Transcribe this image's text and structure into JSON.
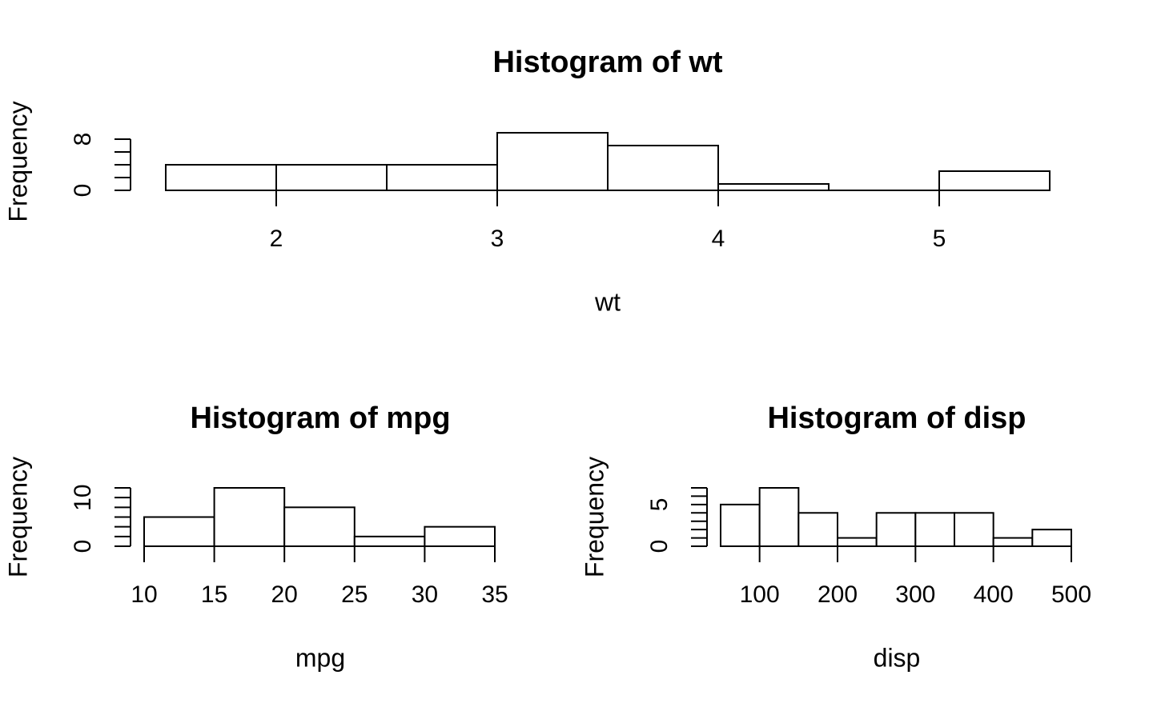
{
  "chart_data": [
    {
      "type": "histogram",
      "title": "Histogram of wt",
      "xlabel": "wt",
      "ylabel": "Frequency",
      "bins": [
        1.5,
        2,
        2.5,
        3,
        3.5,
        4,
        4.5,
        5,
        5.5
      ],
      "counts": [
        4,
        4,
        4,
        9,
        7,
        1,
        0,
        3
      ],
      "xlim": [
        1.5,
        5.5
      ],
      "ylim": [
        0,
        9
      ],
      "xticks": [
        2,
        3,
        4,
        5
      ],
      "yticks": [
        0,
        8
      ],
      "yminor": [
        2,
        4,
        6
      ]
    },
    {
      "type": "histogram",
      "title": "Histogram of mpg",
      "xlabel": "mpg",
      "ylabel": "Frequency",
      "bins": [
        10,
        15,
        20,
        25,
        30,
        35
      ],
      "counts": [
        6,
        12,
        8,
        2,
        4
      ],
      "xlim": [
        10,
        35
      ],
      "ylim": [
        0,
        12
      ],
      "xticks": [
        10,
        15,
        20,
        25,
        30,
        35
      ],
      "yticks": [
        0,
        10
      ],
      "yminor": [
        2,
        4,
        6,
        8,
        12
      ]
    },
    {
      "type": "histogram",
      "title": "Histogram of disp",
      "xlabel": "disp",
      "ylabel": "Frequency",
      "bins": [
        50,
        100,
        150,
        200,
        250,
        300,
        350,
        400,
        450,
        500
      ],
      "counts": [
        5,
        7,
        4,
        1,
        4,
        4,
        4,
        1,
        2
      ],
      "xlim": [
        50,
        500
      ],
      "ylim": [
        0,
        7
      ],
      "xticks": [
        100,
        200,
        300,
        400,
        500
      ],
      "yticks": [
        0,
        5
      ],
      "yminor": [
        1,
        2,
        3,
        4,
        6,
        7
      ]
    }
  ]
}
